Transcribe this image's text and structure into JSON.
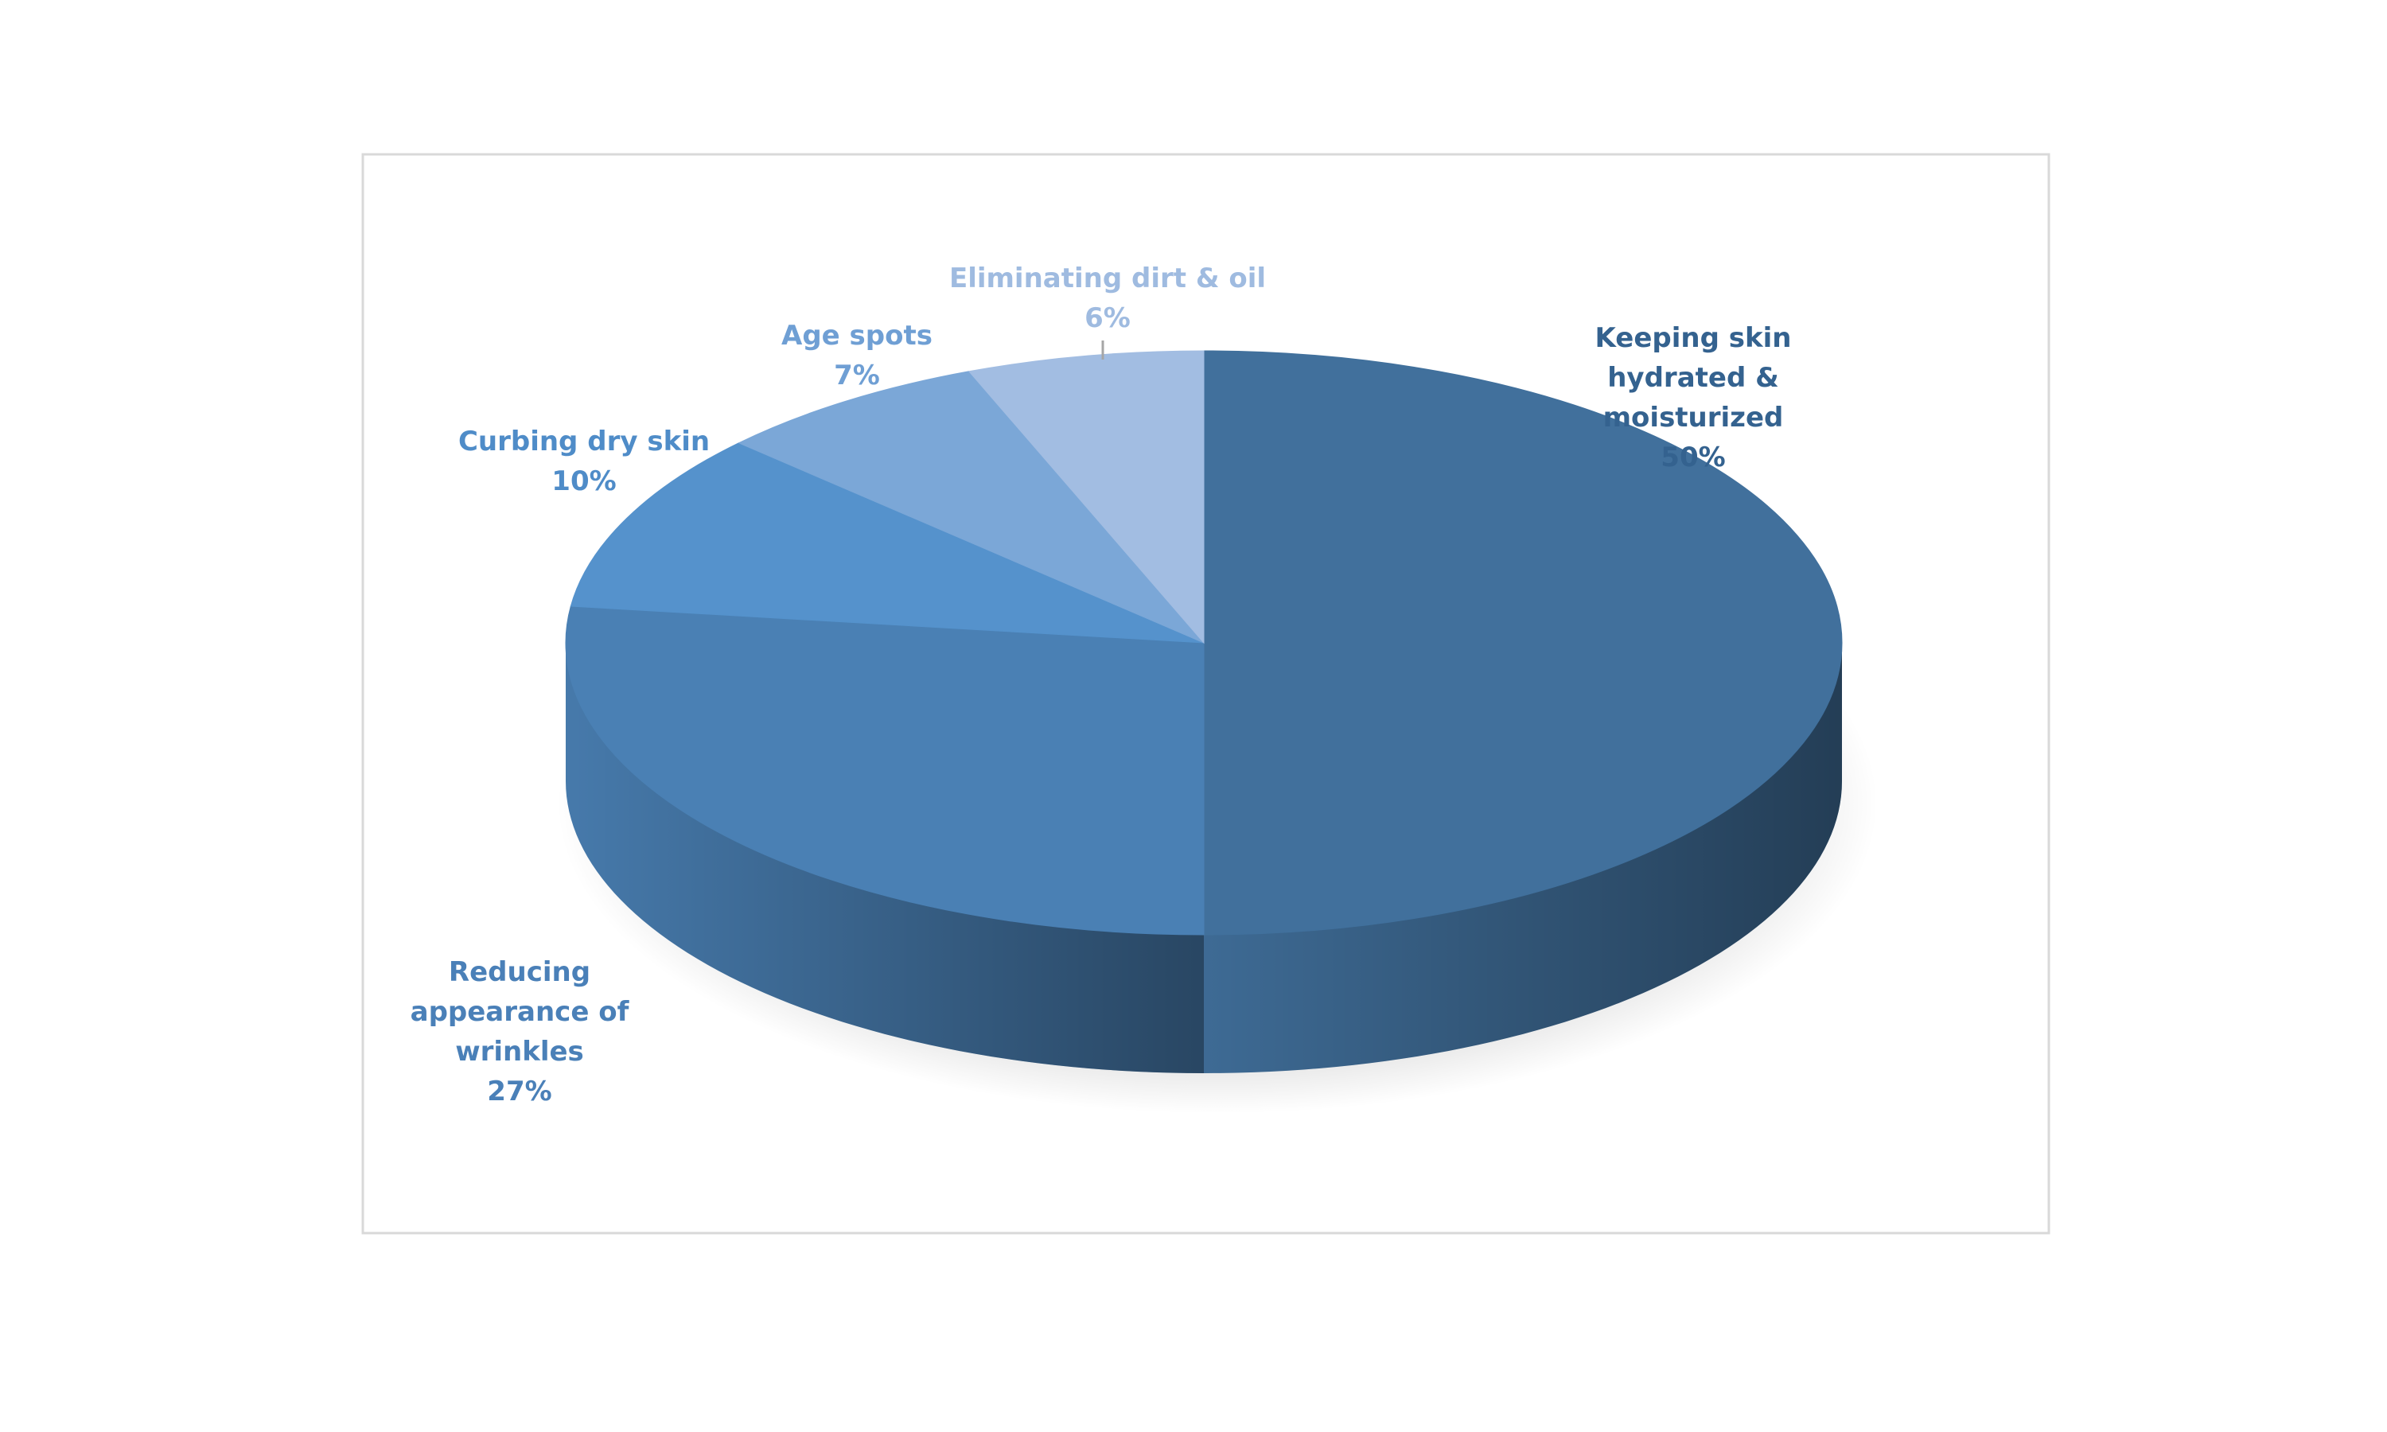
{
  "chart_data": {
    "type": "pie",
    "categories": [
      "Keeping skin hydrated & moisturized",
      "Reducing appearance of wrinkles",
      "Curbing dry skin",
      "Age spots",
      "Eliminating dirt & oil"
    ],
    "values": [
      50,
      27,
      10,
      7,
      6
    ],
    "value_labels": [
      "50%",
      "27%",
      "10%",
      "7%",
      "6%"
    ],
    "colors": [
      "#41709c",
      "#4a80b4",
      "#5592cc",
      "#7ba7d7",
      "#a2bde2"
    ],
    "label_colors": [
      "#34628f",
      "#4a80b8",
      "#4f8cc8",
      "#6f9fd4",
      "#9fbbe0"
    ]
  }
}
